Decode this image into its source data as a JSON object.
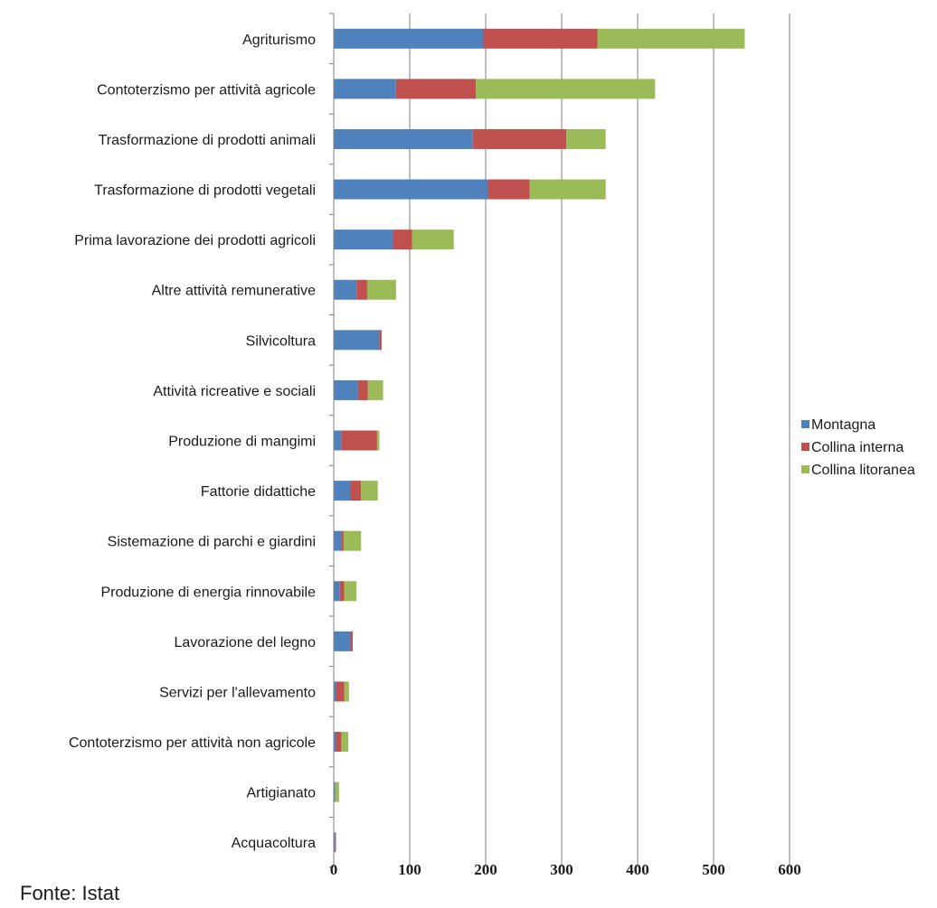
{
  "chart_data": {
    "type": "bar",
    "orientation": "horizontal",
    "stacked": true,
    "title": "",
    "xlabel": "",
    "ylabel": "",
    "xlim": [
      0,
      600
    ],
    "x_ticks": [
      0,
      100,
      200,
      300,
      400,
      500,
      600
    ],
    "grid": "vertical",
    "legend_position": "right",
    "categories": [
      "Agriturismo",
      "Contoterzismo per attività agricole",
      "Trasformazione di prodotti animali",
      "Trasformazione di prodotti vegetali",
      "Prima lavorazione dei prodotti agricoli",
      "Altre attività remunerative",
      "Silvicoltura",
      "Attività ricreative e sociali",
      "Produzione di mangimi",
      "Fattorie didattiche",
      "Sistemazione di parchi e giardini",
      "Produzione di energia rinnovabile",
      "Lavorazione del legno",
      "Servizi per l'allevamento",
      "Contoterzismo per attività non agricole",
      "Artigianato",
      "Acquacoltura"
    ],
    "series": [
      {
        "name": "Montagna",
        "color": "#4f81bd",
        "values": [
          197,
          82,
          183,
          203,
          78,
          30,
          60,
          32,
          10,
          22,
          10,
          8,
          22,
          3,
          3,
          2,
          2
        ]
      },
      {
        "name": "Collina interna",
        "color": "#c0504d",
        "values": [
          150,
          105,
          123,
          55,
          25,
          14,
          3,
          13,
          47,
          14,
          3,
          6,
          3,
          11,
          7,
          0,
          1
        ]
      },
      {
        "name": "Collina litoranea",
        "color": "#9bbb59",
        "values": [
          194,
          236,
          52,
          100,
          55,
          38,
          0,
          20,
          3,
          22,
          23,
          16,
          0,
          6,
          9,
          5,
          0
        ]
      }
    ]
  },
  "footer": {
    "note": "Fonte: Istat"
  }
}
